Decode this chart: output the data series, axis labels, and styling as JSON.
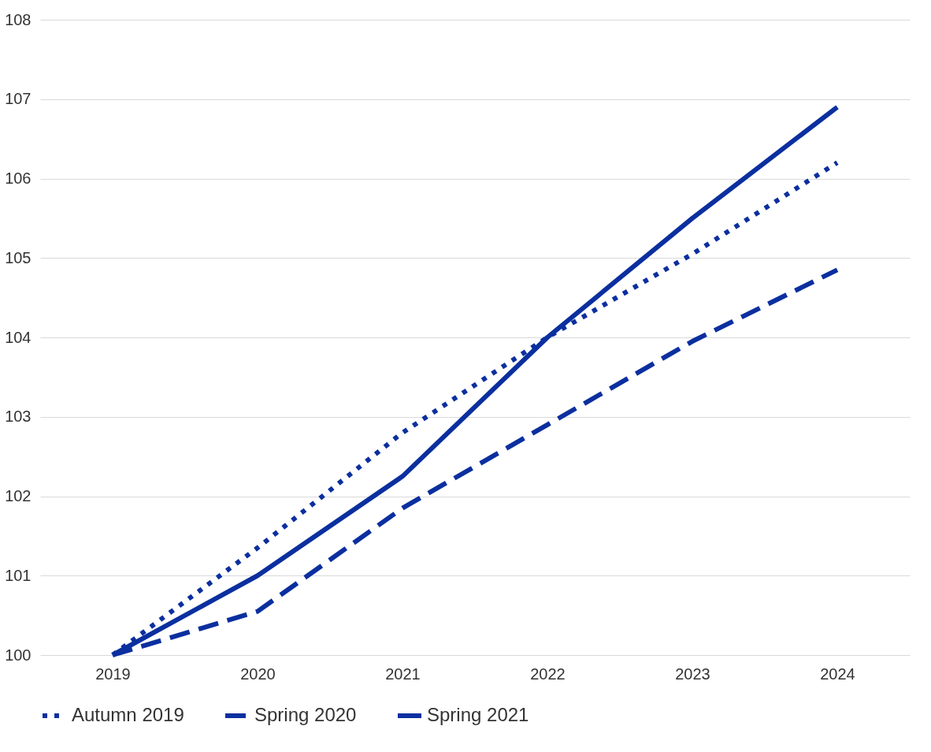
{
  "chart_data": {
    "type": "line",
    "categories": [
      "2019",
      "2020",
      "2021",
      "2022",
      "2023",
      "2024"
    ],
    "series": [
      {
        "name": "Autumn 2019",
        "color": "#0b2f9f",
        "line_style": "dotted",
        "values": [
          100,
          101.35,
          102.8,
          104.0,
          105.05,
          106.2
        ]
      },
      {
        "name": "Spring 2020",
        "color": "#0b2f9f",
        "line_style": "dashed",
        "values": [
          100,
          100.55,
          101.85,
          102.9,
          103.95,
          104.85
        ]
      },
      {
        "name": "Spring 2021",
        "color": "#0b2f9f",
        "line_style": "solid",
        "values": [
          100,
          101.0,
          102.25,
          104.0,
          105.5,
          106.9
        ]
      }
    ],
    "ylim": [
      100,
      108
    ],
    "yticks": [
      100,
      101,
      102,
      103,
      104,
      105,
      106,
      107,
      108
    ],
    "grid": "y",
    "legend": "bottom"
  }
}
